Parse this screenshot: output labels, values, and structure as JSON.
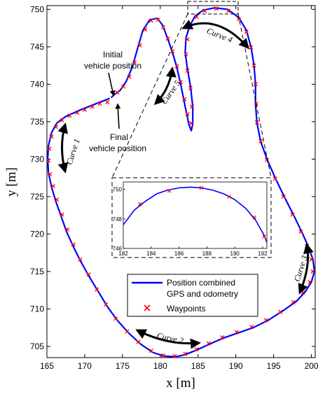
{
  "chart_data": {
    "type": "line",
    "xlabel": "x [m]",
    "ylabel": "y [m]",
    "xlim": [
      165,
      200.5
    ],
    "ylim": [
      703.5,
      750.5
    ],
    "xticks": [
      165,
      170,
      175,
      180,
      185,
      190,
      195,
      200
    ],
    "yticks": [
      705,
      710,
      715,
      720,
      725,
      730,
      735,
      740,
      745,
      750
    ],
    "grid": false,
    "legend": {
      "placement": "lower-center",
      "entries": [
        {
          "label_line1": "Position combined",
          "label_line2": "GPS and odometry",
          "color": "#0000ff",
          "marker": "line"
        },
        {
          "label_line1": "Waypoints",
          "label_line2": "",
          "color": "#ff0000",
          "marker": "x"
        }
      ]
    },
    "series": [
      {
        "name": "Position combined GPS and odometry",
        "color": "#0000ff",
        "points": [
          [
            173.3,
            738.1
          ],
          [
            171.5,
            737.4
          ],
          [
            169.5,
            736.6
          ],
          [
            167.5,
            735.7
          ],
          [
            166.3,
            734.8
          ],
          [
            165.6,
            733.5
          ],
          [
            165.2,
            731.8
          ],
          [
            165.1,
            730.0
          ],
          [
            165.2,
            728.2
          ],
          [
            165.6,
            726.3
          ],
          [
            166.2,
            724.3
          ],
          [
            166.9,
            722.3
          ],
          [
            167.6,
            720.3
          ],
          [
            168.5,
            718.3
          ],
          [
            169.5,
            716.3
          ],
          [
            170.6,
            714.3
          ],
          [
            171.8,
            712.3
          ],
          [
            173.0,
            710.3
          ],
          [
            174.3,
            708.5
          ],
          [
            175.8,
            706.8
          ],
          [
            177.4,
            705.3
          ],
          [
            179.0,
            704.2
          ],
          [
            180.5,
            703.7
          ],
          [
            182.0,
            703.6
          ],
          [
            183.3,
            703.9
          ],
          [
            184.8,
            704.5
          ],
          [
            186.5,
            705.3
          ],
          [
            188.3,
            706.1
          ],
          [
            190.3,
            706.8
          ],
          [
            192.3,
            707.5
          ],
          [
            194.3,
            708.5
          ],
          [
            196.3,
            709.8
          ],
          [
            198.0,
            711.0
          ],
          [
            199.2,
            712.3
          ],
          [
            200.0,
            713.6
          ],
          [
            200.4,
            715.0
          ],
          [
            200.2,
            716.6
          ],
          [
            199.6,
            718.3
          ],
          [
            198.8,
            720.1
          ],
          [
            197.7,
            722.4
          ],
          [
            196.5,
            724.8
          ],
          [
            195.3,
            727.3
          ],
          [
            194.2,
            729.8
          ],
          [
            193.3,
            732.3
          ],
          [
            192.8,
            734.8
          ],
          [
            192.6,
            737.3
          ],
          [
            192.6,
            740.0
          ],
          [
            192.4,
            742.6
          ],
          [
            192.0,
            745.0
          ],
          [
            191.4,
            747.2
          ],
          [
            190.4,
            748.9
          ],
          [
            188.9,
            750.0
          ],
          [
            187.2,
            750.2
          ],
          [
            185.7,
            749.9
          ],
          [
            184.6,
            749.1
          ],
          [
            183.9,
            747.8
          ],
          [
            183.4,
            746.2
          ],
          [
            183.3,
            744.2
          ],
          [
            183.6,
            742.0
          ],
          [
            184.0,
            739.7
          ],
          [
            184.3,
            737.0
          ],
          [
            184.3,
            734.7
          ],
          [
            184.1,
            733.8
          ],
          [
            183.8,
            734.6
          ],
          [
            183.3,
            737.0
          ],
          [
            182.7,
            740.0
          ],
          [
            182.1,
            742.6
          ],
          [
            181.5,
            744.6
          ],
          [
            180.9,
            746.3
          ],
          [
            180.3,
            747.9
          ],
          [
            179.6,
            748.8
          ],
          [
            178.6,
            748.6
          ],
          [
            177.7,
            747.2
          ],
          [
            177.0,
            744.8
          ],
          [
            176.3,
            742.3
          ],
          [
            175.5,
            740.4
          ],
          [
            174.7,
            739.2
          ],
          [
            173.9,
            738.6
          ],
          [
            173.5,
            738.2
          ]
        ]
      },
      {
        "name": "Waypoints",
        "color": "#ff0000",
        "points": [
          [
            173.0,
            737.6
          ],
          [
            172.0,
            737.4
          ],
          [
            171.0,
            737.0
          ],
          [
            170.0,
            736.6
          ],
          [
            169.0,
            736.2
          ],
          [
            168.0,
            735.8
          ],
          [
            167.0,
            735.2
          ],
          [
            166.2,
            734.3
          ],
          [
            165.6,
            733.0
          ],
          [
            165.3,
            731.4
          ],
          [
            165.2,
            729.8
          ],
          [
            165.4,
            728.0
          ],
          [
            165.8,
            726.4
          ],
          [
            166.3,
            724.6
          ],
          [
            167.0,
            722.6
          ],
          [
            167.7,
            720.6
          ],
          [
            168.5,
            718.6
          ],
          [
            169.4,
            716.6
          ],
          [
            170.5,
            714.6
          ],
          [
            171.6,
            712.6
          ],
          [
            172.8,
            710.6
          ],
          [
            174.1,
            708.7
          ],
          [
            175.6,
            707.0
          ],
          [
            177.1,
            705.6
          ],
          [
            178.8,
            704.4
          ],
          [
            180.4,
            703.8
          ],
          [
            181.9,
            703.7
          ],
          [
            183.3,
            704.0
          ],
          [
            184.8,
            704.6
          ],
          [
            186.4,
            705.4
          ],
          [
            188.2,
            706.2
          ],
          [
            190.1,
            706.9
          ],
          [
            192.1,
            707.6
          ],
          [
            194.0,
            708.5
          ],
          [
            195.9,
            709.6
          ],
          [
            197.6,
            710.9
          ],
          [
            198.9,
            712.2
          ],
          [
            199.8,
            713.6
          ],
          [
            200.2,
            715.0
          ],
          [
            200.0,
            716.6
          ],
          [
            199.4,
            718.4
          ],
          [
            198.6,
            720.3
          ],
          [
            197.5,
            722.6
          ],
          [
            196.3,
            725.0
          ],
          [
            195.2,
            727.4
          ],
          [
            194.1,
            729.9
          ],
          [
            193.3,
            732.4
          ],
          [
            192.8,
            734.9
          ],
          [
            192.7,
            737.4
          ],
          [
            192.6,
            740.0
          ],
          [
            192.4,
            742.5
          ],
          [
            192.0,
            744.9
          ],
          [
            191.4,
            747.0
          ],
          [
            190.4,
            748.7
          ],
          [
            189.0,
            749.8
          ],
          [
            187.4,
            750.1
          ],
          [
            185.9,
            749.8
          ],
          [
            184.8,
            749.0
          ],
          [
            184.1,
            747.7
          ],
          [
            183.6,
            746.0
          ],
          [
            183.4,
            744.0
          ],
          [
            183.6,
            741.8
          ],
          [
            184.0,
            739.5
          ],
          [
            184.2,
            737.0
          ],
          [
            184.1,
            734.8
          ],
          [
            183.6,
            736.0
          ],
          [
            183.2,
            738.0
          ],
          [
            182.7,
            740.3
          ],
          [
            182.2,
            742.4
          ],
          [
            181.6,
            744.4
          ],
          [
            181.0,
            746.1
          ],
          [
            180.4,
            747.6
          ],
          [
            179.7,
            748.6
          ],
          [
            178.8,
            748.5
          ],
          [
            178.0,
            747.3
          ],
          [
            177.3,
            745.2
          ],
          [
            176.6,
            742.9
          ],
          [
            175.9,
            741.0
          ],
          [
            175.1,
            739.7
          ],
          [
            174.3,
            738.9
          ]
        ]
      }
    ],
    "inset": {
      "xlim": [
        182,
        192.3
      ],
      "ylim": [
        746,
        750.5
      ],
      "xticks": [
        182,
        184,
        186,
        188,
        190,
        192
      ],
      "yticks": [
        746,
        748,
        750
      ],
      "line": [
        [
          182,
          747.6
        ],
        [
          182.8,
          748.6
        ],
        [
          183.6,
          749.2
        ],
        [
          184.4,
          749.7
        ],
        [
          185.2,
          749.95
        ],
        [
          186,
          750.1
        ],
        [
          186.8,
          750.15
        ],
        [
          187.6,
          750.1
        ],
        [
          188.4,
          749.95
        ],
        [
          189.2,
          749.7
        ],
        [
          190,
          749.3
        ],
        [
          190.8,
          748.7
        ],
        [
          191.5,
          747.9
        ],
        [
          192.1,
          746.9
        ],
        [
          192.3,
          746.4
        ]
      ],
      "waypoints": [
        [
          183.2,
          749.0
        ],
        [
          185.3,
          749.9
        ],
        [
          187.6,
          750.1
        ],
        [
          189.6,
          749.5
        ],
        [
          191.4,
          748.1
        ],
        [
          192.1,
          746.8
        ]
      ]
    },
    "annotations": [
      {
        "id": "initial",
        "line1": "Initial",
        "line2": "vehicle position"
      },
      {
        "id": "final",
        "line1": "Final",
        "line2": "vehicle position"
      },
      {
        "id": "curve1",
        "text": "Curve 1"
      },
      {
        "id": "curve2",
        "text": "Curve 2"
      },
      {
        "id": "curve3",
        "text": "Curve 3"
      },
      {
        "id": "curve4",
        "text": "Curve 4"
      },
      {
        "id": "curve5",
        "text": "Curve 5"
      }
    ]
  }
}
